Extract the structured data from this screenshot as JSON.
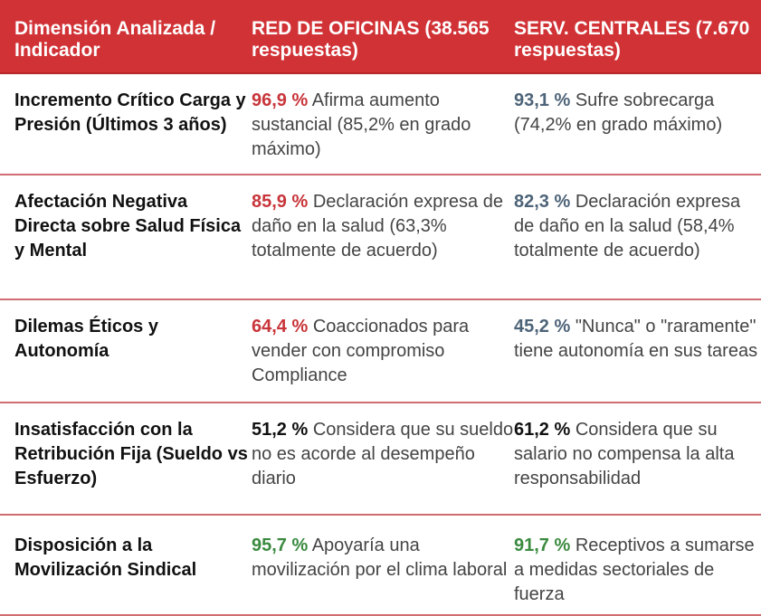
{
  "header": {
    "col1": "Dimensión Analizada / Indicador",
    "col2": "RED DE OFICINAS (38.565 respuestas)",
    "col3": "SERV. CENTRALES (7.670 respuestas)"
  },
  "colors": {
    "header_bg": "#d13236",
    "oficinas_red": "#c8353a",
    "centrales_blue": "#4d6378",
    "neutral_black": "#111111",
    "positive_green": "#3a8a3f"
  },
  "rows": [
    {
      "dimension": "Incremento Crítico Carga y Presión (Últimos 3 años)",
      "oficinas_value": "96,9 %",
      "oficinas_text": " Afirma aumento sustancial (85,2% en grado máximo)",
      "centrales_value": "93,1 %",
      "centrales_text": " Sufre sobrecarga (74,2% en grado máximo)"
    },
    {
      "dimension": "Afectación Negativa Directa sobre Salud Física y Mental",
      "oficinas_value": "85,9 %",
      "oficinas_text": " Declaración expresa de daño en la salud (63,3% totalmente de acuerdo)",
      "centrales_value": "82,3 %",
      "centrales_text": " Declaración expresa de daño en la salud (58,4% totalmente de acuerdo)"
    },
    {
      "dimension": "Dilemas Éticos y Autonomía",
      "oficinas_value": "64,4 %",
      "oficinas_text": " Coaccionados para vender con compromiso Compliance",
      "centrales_value": "45,2 %",
      "centrales_text": " \"Nunca\" o \"raramente\" tiene autonomía en sus tareas"
    },
    {
      "dimension": "Insatisfacción con la Retribución Fija (Sueldo vs Esfuerzo)",
      "oficinas_value": "51,2 %",
      "oficinas_text": " Considera que su sueldo no es acorde al desempeño diario",
      "centrales_value": "61,2 %",
      "centrales_text": " Considera que su salario no compensa la alta responsabilidad"
    },
    {
      "dimension": "Disposición a la Movilización Sindical",
      "oficinas_value": "95,7 %",
      "oficinas_text": " Apoyaría una movilización por el clima laboral",
      "centrales_value": "91,7 %",
      "centrales_text": " Receptivos a sumarse a medidas sectoriales de fuerza"
    }
  ]
}
